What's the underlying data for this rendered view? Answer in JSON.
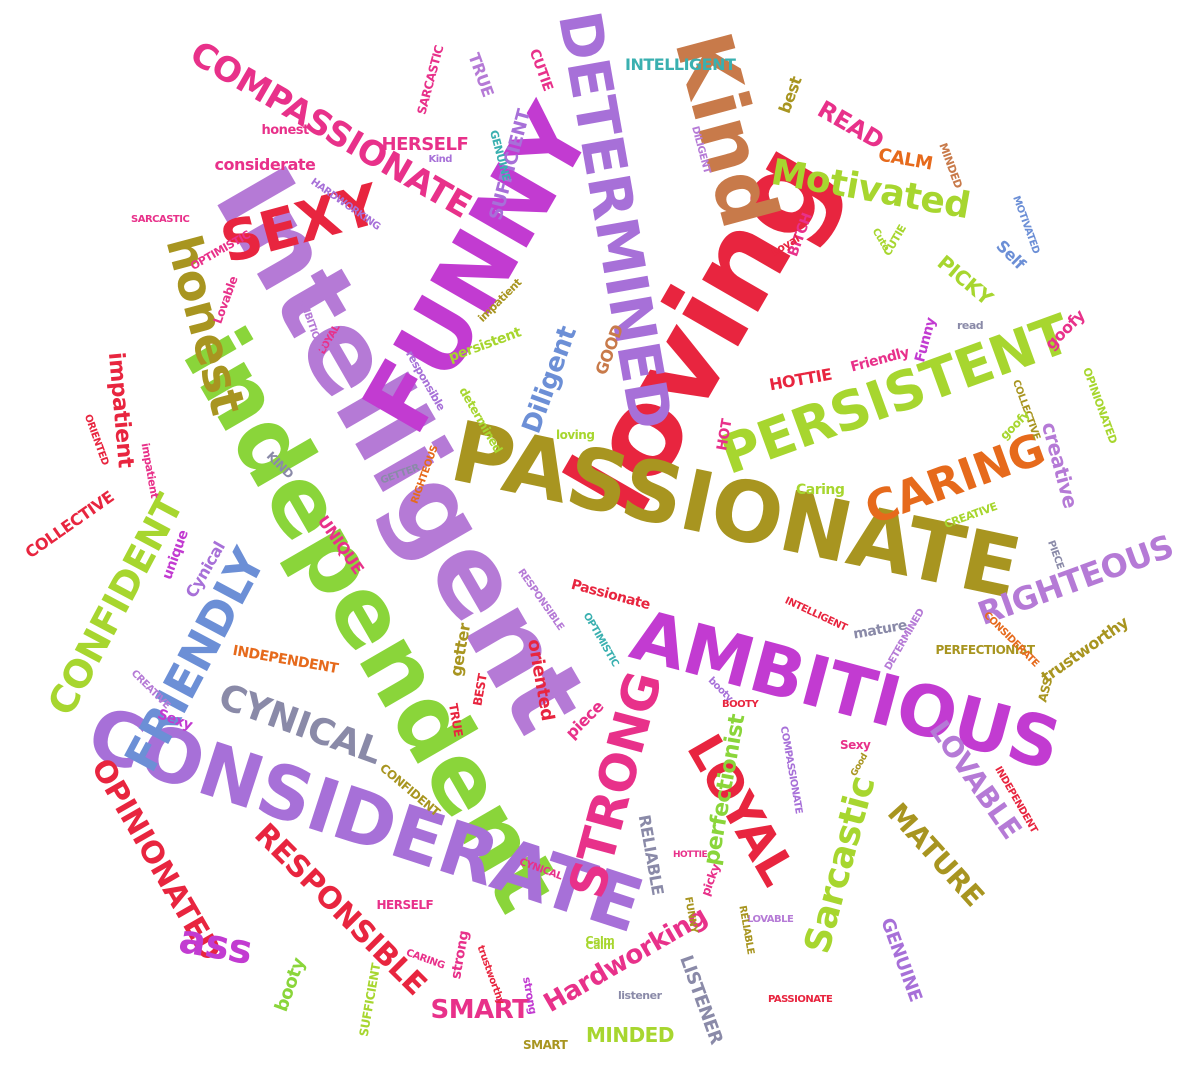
{
  "colors": {
    "pink": "#e8318a",
    "magenta": "#c23bd1",
    "purple": "#a770d8",
    "lavender": "#b57ad6",
    "red": "#e8253f",
    "orange": "#e66a1c",
    "green": "#8ad53a",
    "lime": "#a7d62f",
    "olive": "#a89520",
    "brown": "#c87a4a",
    "blue": "#6c8fd6",
    "teal": "#3ab0b0",
    "slate": "#8a8aa8",
    "rose": "#d94b6a"
  },
  "words": [
    {
      "text": "Intelligent",
      "color": "lavender"
    },
    {
      "text": "FUNNY",
      "color": "magenta"
    },
    {
      "text": "loving",
      "color": "red"
    },
    {
      "text": "PASSIONATE",
      "color": "olive"
    },
    {
      "text": "independent",
      "color": "green"
    },
    {
      "text": "AMBITIOUS",
      "color": "magenta"
    },
    {
      "text": "CONSIDERATE",
      "color": "purple"
    },
    {
      "text": "Kind",
      "color": "brown"
    },
    {
      "text": "DETERMINED",
      "color": "purple"
    },
    {
      "text": "PERSISTENT",
      "color": "lime"
    },
    {
      "text": "SEXY",
      "color": "red"
    },
    {
      "text": "honest",
      "color": "olive"
    },
    {
      "text": "STRONG",
      "color": "pink"
    },
    {
      "text": "LOYAL",
      "color": "red"
    },
    {
      "text": "CARING",
      "color": "orange"
    },
    {
      "text": "CONFIDENT",
      "color": "lime"
    },
    {
      "text": "FRIENDLY",
      "color": "blue"
    },
    {
      "text": "CYNICAL",
      "color": "slate"
    },
    {
      "text": "COMPASSIONATE",
      "color": "pink"
    },
    {
      "text": "Motivated",
      "color": "lime"
    },
    {
      "text": "RIGHTEOUS",
      "color": "lavender"
    },
    {
      "text": "OPINIONATED",
      "color": "red"
    },
    {
      "text": "RESPONSIBLE",
      "color": "red"
    },
    {
      "text": "Sarcastic",
      "color": "lime"
    },
    {
      "text": "perfectionist",
      "color": "green"
    },
    {
      "text": "LOVABLE",
      "color": "lavender"
    },
    {
      "text": "MATURE",
      "color": "olive"
    },
    {
      "text": "Hardworking",
      "color": "pink"
    },
    {
      "text": "SMART",
      "color": "pink"
    },
    {
      "text": "ass",
      "color": "magenta"
    },
    {
      "text": "Diligent",
      "color": "blue"
    },
    {
      "text": "impatient",
      "color": "red"
    },
    {
      "text": "PICKY",
      "color": "lime"
    },
    {
      "text": "READ",
      "color": "pink"
    },
    {
      "text": "CALM",
      "color": "orange"
    },
    {
      "text": "creative",
      "color": "lavender"
    },
    {
      "text": "GENUINE",
      "color": "purple"
    },
    {
      "text": "LISTENER",
      "color": "slate"
    },
    {
      "text": "MINDED",
      "color": "lime"
    },
    {
      "text": "RELIABLE",
      "color": "slate"
    },
    {
      "text": "HERSELF",
      "color": "pink"
    },
    {
      "text": "SUFFICIENT",
      "color": "purple"
    },
    {
      "text": "considerate",
      "color": "pink"
    },
    {
      "text": "INTELLIGENT",
      "color": "teal"
    },
    {
      "text": "COLLECTIVE",
      "color": "red"
    },
    {
      "text": "UNIQUE",
      "color": "pink"
    },
    {
      "text": "INDEPENDENT",
      "color": "orange"
    },
    {
      "text": "trustworthy",
      "color": "olive"
    },
    {
      "text": "oriented",
      "color": "red"
    },
    {
      "text": "piece",
      "color": "pink"
    },
    {
      "text": "getter",
      "color": "olive"
    },
    {
      "text": "HOTTIE",
      "color": "red"
    },
    {
      "text": "HOT",
      "color": "pink"
    },
    {
      "text": "Friendly",
      "color": "pink"
    },
    {
      "text": "Funny",
      "color": "magenta"
    },
    {
      "text": "goofy",
      "color": "pink"
    },
    {
      "text": "Self",
      "color": "blue"
    },
    {
      "text": "best",
      "color": "olive"
    },
    {
      "text": "CUTIE",
      "color": "pink"
    },
    {
      "text": "TRUE",
      "color": "lavender"
    },
    {
      "text": "SARCASTIC",
      "color": "pink"
    },
    {
      "text": "booty",
      "color": "green"
    },
    {
      "text": "strong",
      "color": "pink"
    },
    {
      "text": "Cynical",
      "color": "purple"
    },
    {
      "text": "unique",
      "color": "magenta"
    },
    {
      "text": "Sexy",
      "color": "magenta"
    },
    {
      "text": "Caring",
      "color": "lime"
    },
    {
      "text": "Passionate",
      "color": "red"
    },
    {
      "text": "mature",
      "color": "slate"
    },
    {
      "text": "PERFECTIONIST",
      "color": "olive"
    },
    {
      "text": "ASS",
      "color": "olive"
    },
    {
      "text": "persistent",
      "color": "lime"
    },
    {
      "text": "determined",
      "color": "lime"
    },
    {
      "text": "GOOD",
      "color": "brown"
    },
    {
      "text": "Lovable",
      "color": "pink"
    },
    {
      "text": "OPTIMISTIC",
      "color": "pink"
    },
    {
      "text": "HARDWORKING",
      "color": "purple"
    },
    {
      "text": "BITCH",
      "color": "pink"
    },
    {
      "text": "KIND",
      "color": "slate"
    },
    {
      "text": "responsible",
      "color": "purple"
    },
    {
      "text": "loving",
      "color": "lime"
    },
    {
      "text": "CREATIVE",
      "color": "lime"
    },
    {
      "text": "BEST",
      "color": "red"
    },
    {
      "text": "Calm",
      "color": "lime"
    },
    {
      "text": "CONFIDENT",
      "color": "olive"
    },
    {
      "text": "impatient",
      "color": "pink"
    },
    {
      "text": "read",
      "color": "slate"
    },
    {
      "text": "COLLECTIVE",
      "color": "olive"
    },
    {
      "text": "SMART",
      "color": "olive"
    },
    {
      "text": "OPINIONATED",
      "color": "lime"
    },
    {
      "text": "DILIGENT",
      "color": "lavender"
    },
    {
      "text": "MINDED",
      "color": "brown"
    },
    {
      "text": "honest",
      "color": "pink"
    },
    {
      "text": "impatient",
      "color": "olive"
    },
    {
      "text": "GENUINE",
      "color": "teal"
    },
    {
      "text": "Kind",
      "color": "purple"
    },
    {
      "text": "SARCASTIC",
      "color": "pink"
    },
    {
      "text": "COMPASSIONATE",
      "color": "purple"
    },
    {
      "text": "LOYAL",
      "color": "pink"
    },
    {
      "text": "AMBITIOUS",
      "color": "lavender"
    },
    {
      "text": "RESPONSIBLE",
      "color": "lavender"
    },
    {
      "text": "RIGHTEOUS",
      "color": "orange"
    },
    {
      "text": "PIECE",
      "color": "slate"
    },
    {
      "text": "goofy",
      "color": "lime"
    },
    {
      "text": "MOTIVATED",
      "color": "blue"
    },
    {
      "text": "CONSIDERATE",
      "color": "orange"
    },
    {
      "text": "GETTER",
      "color": "slate"
    },
    {
      "text": "TRUE",
      "color": "red"
    },
    {
      "text": "Sexy",
      "color": "pink"
    },
    {
      "text": "Loyal",
      "color": "red"
    },
    {
      "text": "CUTIE",
      "color": "lime"
    },
    {
      "text": "strong",
      "color": "magenta"
    },
    {
      "text": "booty",
      "color": "purple"
    },
    {
      "text": "picky",
      "color": "pink"
    },
    {
      "text": "listener",
      "color": "slate"
    },
    {
      "text": "trustworthy",
      "color": "red"
    },
    {
      "text": "HERSELF",
      "color": "pink"
    },
    {
      "text": "SUFFICIENT",
      "color": "lime"
    },
    {
      "text": "CARING",
      "color": "pink"
    },
    {
      "text": "INTELLIGENT",
      "color": "red"
    },
    {
      "text": "ORIENTED",
      "color": "red"
    },
    {
      "text": "Cute",
      "color": "lime"
    },
    {
      "text": "BOOTY",
      "color": "red"
    },
    {
      "text": "HOTTIE",
      "color": "pink"
    },
    {
      "text": "Good",
      "color": "olive"
    },
    {
      "text": "CREATIVE",
      "color": "lavender"
    },
    {
      "text": "INDEPENDENT",
      "color": "red"
    },
    {
      "text": "PASSIONATE",
      "color": "red"
    },
    {
      "text": "OPTIMISTIC",
      "color": "teal"
    },
    {
      "text": "DETERMINED",
      "color": "lavender"
    },
    {
      "text": "CYNICAL",
      "color": "pink"
    },
    {
      "text": "FUNNY",
      "color": "olive"
    },
    {
      "text": "LOVABLE",
      "color": "lavender"
    },
    {
      "text": "RELIABLE",
      "color": "olive"
    },
    {
      "text": "Calm",
      "color": "lime"
    }
  ]
}
